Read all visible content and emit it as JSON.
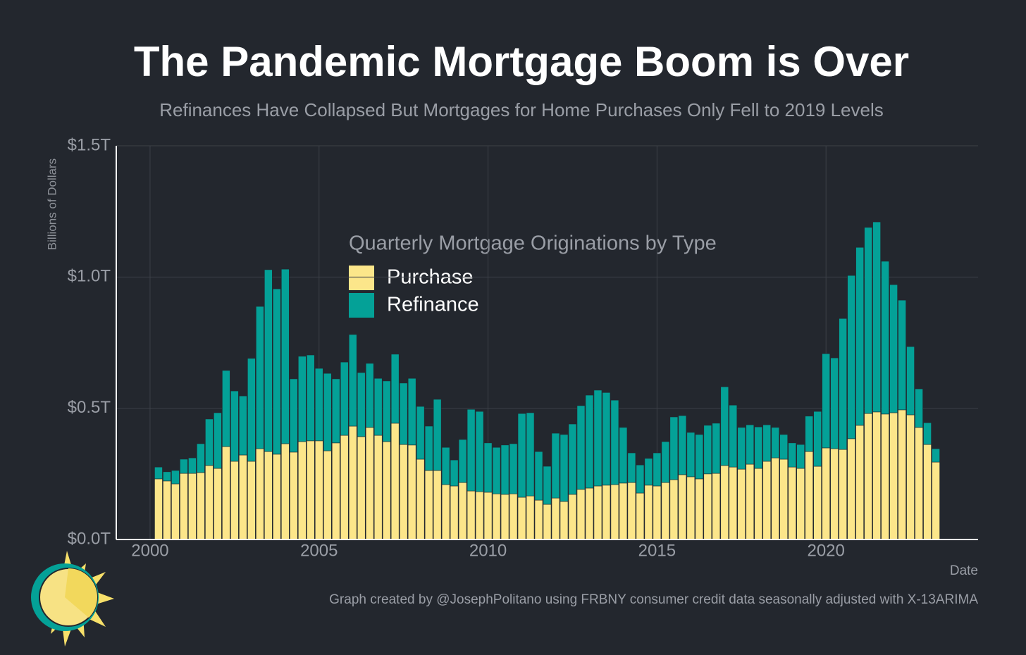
{
  "chart_data": {
    "type": "stacked_bar",
    "title": "The Pandemic Mortgage Boom is Over",
    "subtitle": "Refinances Have Collapsed But Mortgages for Home Purchases Only Fell to 2019 Levels",
    "y_label": "Billions of Dollars",
    "x_label": "Date",
    "legend_title": "Quarterly Mortgage Originations by Type",
    "caption": "Graph created by @JosephPolitano using FRBNY consumer credit data seasonally adjusted with X-13ARIMA",
    "x": [
      2000.25,
      2000.5,
      2000.75,
      2001,
      2001.25,
      2001.5,
      2001.75,
      2002,
      2002.25,
      2002.5,
      2002.75,
      2003,
      2003.25,
      2003.5,
      2003.75,
      2004,
      2004.25,
      2004.5,
      2004.75,
      2005,
      2005.25,
      2005.5,
      2005.75,
      2006,
      2006.25,
      2006.5,
      2006.75,
      2007,
      2007.25,
      2007.5,
      2007.75,
      2008,
      2008.25,
      2008.5,
      2008.75,
      2009,
      2009.25,
      2009.5,
      2009.75,
      2010,
      2010.25,
      2010.5,
      2010.75,
      2011,
      2011.25,
      2011.5,
      2011.75,
      2012,
      2012.25,
      2012.5,
      2012.75,
      2013,
      2013.25,
      2013.5,
      2013.75,
      2014,
      2014.25,
      2014.5,
      2014.75,
      2015,
      2015.25,
      2015.5,
      2015.75,
      2016,
      2016.25,
      2016.5,
      2016.75,
      2017,
      2017.25,
      2017.5,
      2017.75,
      2018,
      2018.25,
      2018.5,
      2018.75,
      2019,
      2019.25,
      2019.5,
      2019.75,
      2020,
      2020.25,
      2020.5,
      2020.75,
      2021,
      2021.25,
      2021.5,
      2021.75,
      2022,
      2022.25,
      2022.5,
      2022.75,
      2023,
      2023.25
    ],
    "series": [
      {
        "name": "Purchase",
        "color": "#fce68a",
        "values": [
          0.231,
          0.223,
          0.212,
          0.252,
          0.252,
          0.255,
          0.282,
          0.271,
          0.354,
          0.298,
          0.322,
          0.298,
          0.346,
          0.335,
          0.325,
          0.365,
          0.333,
          0.373,
          0.376,
          0.376,
          0.338,
          0.368,
          0.397,
          0.432,
          0.392,
          0.427,
          0.397,
          0.373,
          0.443,
          0.362,
          0.36,
          0.306,
          0.263,
          0.263,
          0.209,
          0.204,
          0.217,
          0.185,
          0.182,
          0.18,
          0.174,
          0.172,
          0.174,
          0.161,
          0.166,
          0.15,
          0.134,
          0.158,
          0.145,
          0.172,
          0.191,
          0.196,
          0.204,
          0.207,
          0.209,
          0.215,
          0.217,
          0.177,
          0.207,
          0.204,
          0.217,
          0.228,
          0.247,
          0.239,
          0.231,
          0.25,
          0.252,
          0.282,
          0.276,
          0.268,
          0.287,
          0.271,
          0.298,
          0.311,
          0.306,
          0.276,
          0.271,
          0.335,
          0.279,
          0.349,
          0.346,
          0.343,
          0.384,
          0.435,
          0.48,
          0.486,
          0.478,
          0.483,
          0.494,
          0.475,
          0.427,
          0.362,
          0.295
        ]
      },
      {
        "name": "Refinance",
        "color": "#04a197",
        "values": [
          0.045,
          0.035,
          0.051,
          0.054,
          0.059,
          0.11,
          0.177,
          0.212,
          0.29,
          0.268,
          0.225,
          0.392,
          0.542,
          0.693,
          0.63,
          0.665,
          0.279,
          0.325,
          0.327,
          0.276,
          0.295,
          0.244,
          0.279,
          0.349,
          0.244,
          0.244,
          0.217,
          0.231,
          0.263,
          0.234,
          0.254,
          0.201,
          0.169,
          0.271,
          0.142,
          0.099,
          0.164,
          0.311,
          0.306,
          0.188,
          0.177,
          0.188,
          0.191,
          0.319,
          0.317,
          0.185,
          0.145,
          0.247,
          0.255,
          0.268,
          0.319,
          0.354,
          0.365,
          0.353,
          0.322,
          0.212,
          0.113,
          0.107,
          0.102,
          0.126,
          0.156,
          0.239,
          0.225,
          0.169,
          0.169,
          0.185,
          0.191,
          0.3,
          0.236,
          0.159,
          0.15,
          0.158,
          0.139,
          0.116,
          0.094,
          0.092,
          0.091,
          0.135,
          0.209,
          0.359,
          0.346,
          0.499,
          0.622,
          0.678,
          0.709,
          0.724,
          0.582,
          0.488,
          0.418,
          0.26,
          0.147,
          0.083,
          0.051
        ]
      }
    ],
    "xlim": [
      1999,
      2024.5
    ],
    "xticks": [
      2000,
      2005,
      2010,
      2015,
      2020
    ],
    "ylim": [
      0,
      1.5
    ],
    "yticks": [
      {
        "value": 0,
        "label": "$0.0T"
      },
      {
        "value": 0.5,
        "label": "$0.5T"
      },
      {
        "value": 1,
        "label": "$1.0T"
      },
      {
        "value": 1.5,
        "label": "$1.5T"
      }
    ],
    "grid": true
  }
}
